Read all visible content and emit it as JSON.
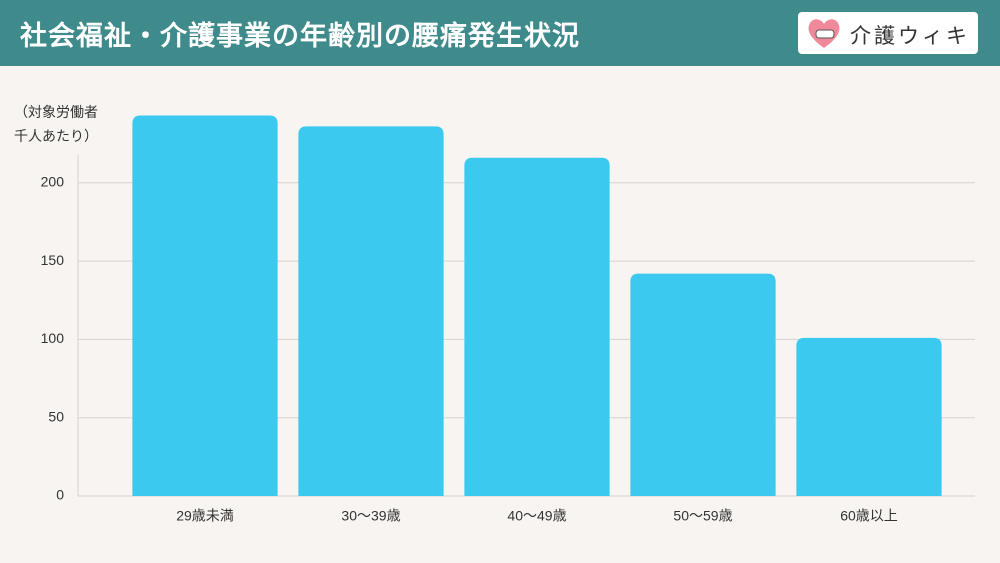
{
  "header": {
    "brand": "介護ウィキ"
  },
  "chart_data": {
    "type": "bar",
    "title": "社会福祉・介護事業の年齢別の腰痛発生状況",
    "y_label": "（対象労働者\n千人あたり）",
    "categories": [
      "29歳未満",
      "30〜39歳",
      "40〜49歳",
      "50〜59歳",
      "60歳以上"
    ],
    "values": [
      243,
      236,
      216,
      142,
      101
    ],
    "color": "#3bc9f0",
    "ylim": [
      0,
      250
    ],
    "yticks": [
      0,
      50,
      100,
      150,
      200
    ],
    "grid": true
  }
}
